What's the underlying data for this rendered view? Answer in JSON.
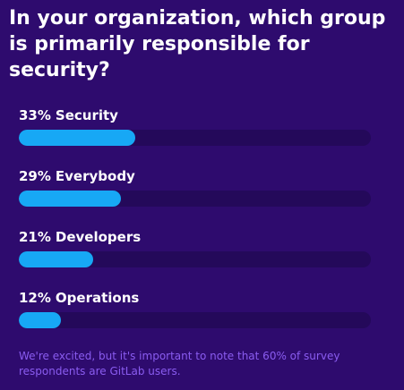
{
  "colors": {
    "background": "#2e0b6e",
    "track": "#24095a",
    "fill": "#17a8f5",
    "footnote": "#8a5cf0"
  },
  "footnote": "We're excited, but it's important to note that 60% of survey respondents are GitLab users.",
  "chart_data": {
    "type": "bar",
    "orientation": "horizontal",
    "title": "In your organization, which group is primarily responsible for security?",
    "categories": [
      "Security",
      "Everybody",
      "Developers",
      "Operations"
    ],
    "values": [
      33,
      29,
      21,
      12
    ],
    "value_labels": [
      "33%",
      "29%",
      "21%",
      "12%"
    ],
    "unit": "%",
    "xlim": [
      0,
      100
    ],
    "grid": false
  }
}
